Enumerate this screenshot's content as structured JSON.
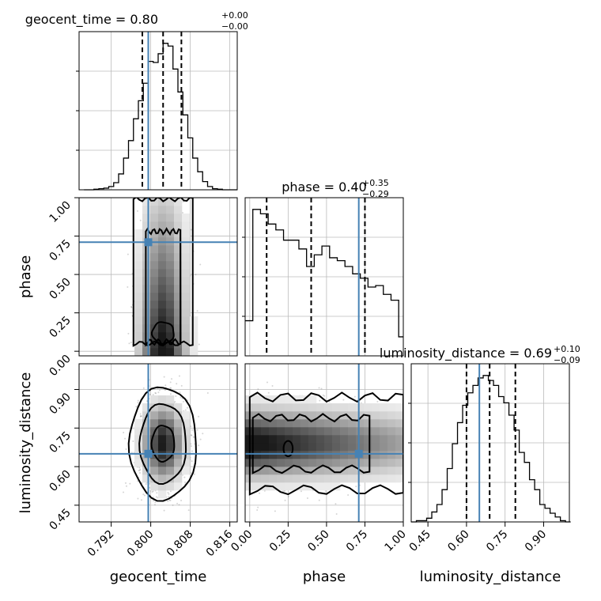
{
  "chart_data": {
    "type": "corner",
    "parameters": [
      "geocent_time",
      "phase",
      "luminosity_distance"
    ],
    "truths": {
      "geocent_time": 0.7995,
      "phase": 0.71,
      "luminosity_distance": 0.65
    },
    "grid": true,
    "axes": {
      "geocent_time": {
        "range": [
          0.7855,
          0.8175
        ],
        "ticks": [
          0.792,
          0.8,
          0.808,
          0.816
        ],
        "tick_labels": [
          "0.792",
          "0.800",
          "0.808",
          "0.816"
        ]
      },
      "phase": {
        "range": [
          -0.03,
          1.0
        ],
        "ticks": [
          0.0,
          0.25,
          0.5,
          0.75,
          1.0
        ],
        "tick_labels": [
          "0.00",
          "0.25",
          "0.50",
          "0.75",
          "1.00"
        ]
      },
      "luminosity_distance": {
        "range": [
          0.385,
          1.0
        ],
        "ticks": [
          0.45,
          0.6,
          0.75,
          0.9
        ],
        "tick_labels": [
          "0.45",
          "0.60",
          "0.75",
          "0.90"
        ]
      }
    },
    "titles": [
      {
        "param": "geocent_time",
        "main": "geocent_time = 0.80",
        "sup": "+0.00",
        "sub": "−0.00",
        "quantiles": [
          0.7983,
          0.8025,
          0.8062
        ]
      },
      {
        "param": "phase",
        "main": "phase = 0.40",
        "sup": "+0.35",
        "sub": "−0.29",
        "quantiles": [
          0.11,
          0.4,
          0.75
        ]
      },
      {
        "param": "luminosity_distance",
        "main": "luminosity_distance = 0.69",
        "sup": "+0.10",
        "sub": "−0.09",
        "quantiles": [
          0.6,
          0.69,
          0.79
        ]
      }
    ],
    "histograms": {
      "geocent_time": {
        "bin_edges": [
          0.7865,
          0.7875,
          0.7885,
          0.7895,
          0.7905,
          0.7915,
          0.7925,
          0.7935,
          0.7945,
          0.7955,
          0.7965,
          0.7975,
          0.7985,
          0.7995,
          0.8005,
          0.8015,
          0.8025,
          0.8035,
          0.8045,
          0.8055,
          0.8065,
          0.8075,
          0.8085,
          0.8095,
          0.8105,
          0.8115,
          0.8125,
          0.8135,
          0.8145,
          0.8155,
          0.8165,
          0.8175
        ],
        "counts": [
          0,
          0,
          1,
          2,
          3,
          6,
          13,
          29,
          58,
          90,
          130,
          163,
          195,
          235,
          233,
          249,
          268,
          263,
          221,
          179,
          137,
          95,
          58,
          33,
          15,
          6,
          2,
          1,
          0,
          0,
          0
        ]
      },
      "phase": {
        "bin_edges": [
          -0.03,
          0.02,
          0.07,
          0.12,
          0.17,
          0.22,
          0.27,
          0.32,
          0.37,
          0.42,
          0.47,
          0.52,
          0.57,
          0.62,
          0.67,
          0.72,
          0.77,
          0.82,
          0.87,
          0.92,
          0.97,
          1.0
        ],
        "counts": [
          24,
          100,
          97,
          90,
          86,
          79,
          79,
          73,
          61,
          69,
          75,
          67,
          65,
          61,
          56,
          53,
          47,
          48,
          42,
          38,
          13
        ]
      },
      "luminosity_distance": {
        "bin_edges": [
          0.385,
          0.405,
          0.425,
          0.445,
          0.465,
          0.485,
          0.505,
          0.525,
          0.545,
          0.565,
          0.585,
          0.605,
          0.625,
          0.645,
          0.665,
          0.685,
          0.705,
          0.725,
          0.745,
          0.765,
          0.785,
          0.805,
          0.825,
          0.845,
          0.865,
          0.885,
          0.905,
          0.925,
          0.945,
          0.965,
          0.985,
          1.005
        ],
        "counts": [
          0,
          1,
          1,
          3,
          8,
          14,
          26,
          43,
          63,
          80,
          94,
          104,
          110,
          116,
          118,
          114,
          110,
          101,
          96,
          86,
          74,
          56,
          48,
          34,
          26,
          14,
          11,
          7,
          4,
          1,
          0
        ]
      }
    },
    "panels_2d": [
      {
        "x": "geocent_time",
        "y": "phase",
        "x_center": 0.8025,
        "x_sd": 0.0025,
        "y_modes": [
          0.12,
          0.4,
          0.7
        ],
        "contour_levels": 3
      },
      {
        "x": "geocent_time",
        "y": "luminosity_distance",
        "x_center": 0.8025,
        "x_sd": 0.0025,
        "y_center": 0.69,
        "y_sd": 0.09,
        "contour_levels": 3
      },
      {
        "x": "phase",
        "y": "luminosity_distance",
        "x_min": 0.0,
        "x_max": 1.0,
        "y_center": 0.69,
        "y_sd": 0.08,
        "contour_levels": 3
      }
    ],
    "colors": {
      "truth": "#4682b4",
      "hist": "#000000",
      "grid": "#bbbbbb",
      "samples": "#888888"
    }
  }
}
